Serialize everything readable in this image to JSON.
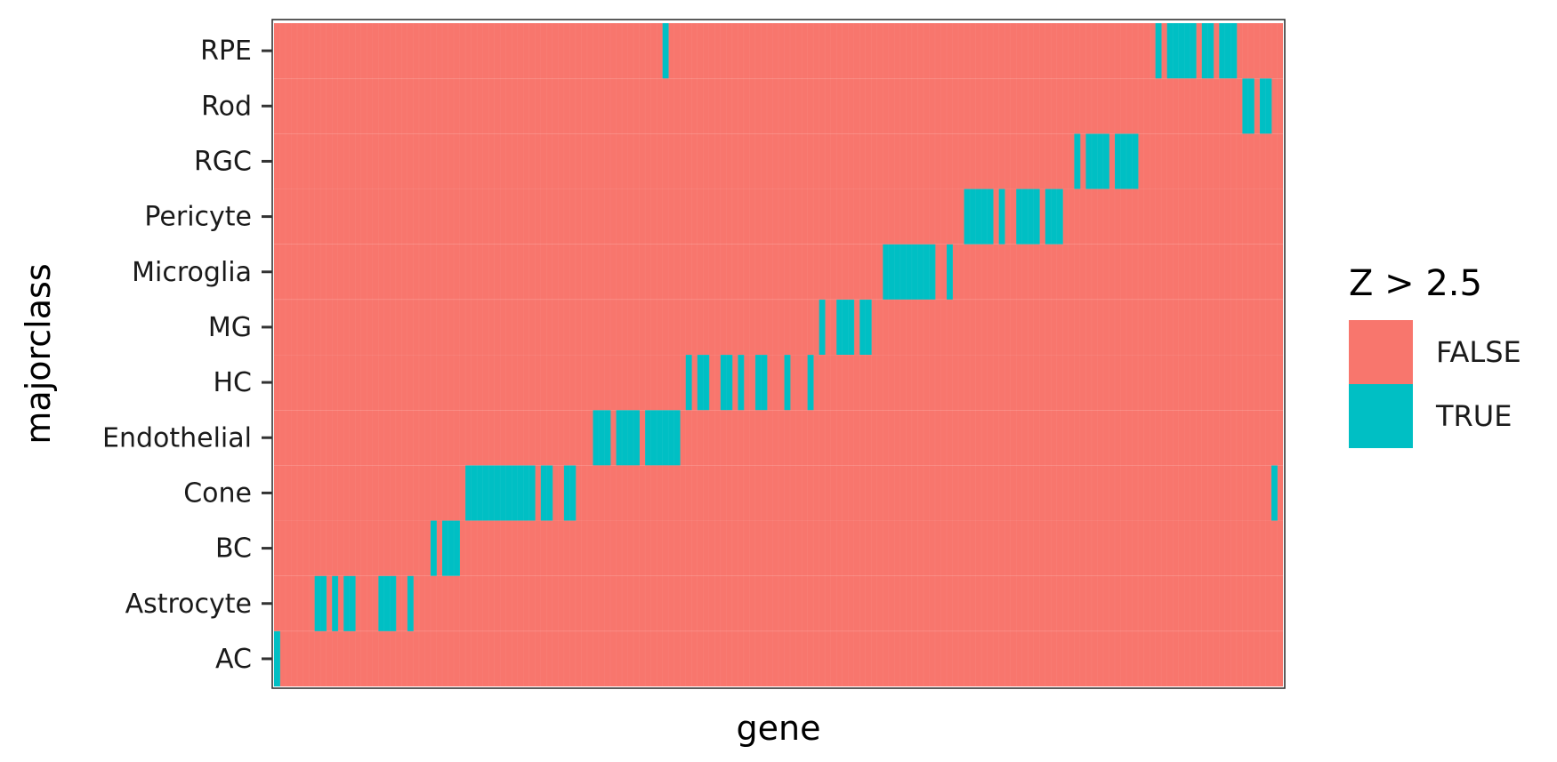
{
  "chart_data": {
    "type": "heatmap",
    "title": "",
    "xlabel": "gene",
    "ylabel": "majorclass",
    "x_tick_labels_shown": false,
    "rows": [
      "AC",
      "Astrocyte",
      "BC",
      "Cone",
      "Endothelial",
      "HC",
      "MG",
      "Microglia",
      "Pericyte",
      "RGC",
      "Rod",
      "RPE"
    ],
    "n_genes": 174,
    "true_gene_indices": {
      "AC": [
        0
      ],
      "Astrocyte": [
        7,
        8,
        10,
        12,
        13,
        18,
        19,
        20,
        23
      ],
      "BC": [
        27,
        29,
        30,
        31
      ],
      "Cone": [
        33,
        34,
        35,
        36,
        37,
        38,
        39,
        40,
        41,
        42,
        43,
        44,
        46,
        47,
        50,
        51,
        172
      ],
      "Endothelial": [
        55,
        56,
        57,
        59,
        60,
        61,
        62,
        64,
        65,
        66,
        67,
        68,
        69
      ],
      "HC": [
        71,
        73,
        74,
        77,
        78,
        80,
        83,
        84,
        88,
        92
      ],
      "MG": [
        94,
        97,
        98,
        99,
        101,
        102
      ],
      "Microglia": [
        105,
        106,
        107,
        108,
        109,
        110,
        111,
        112,
        113,
        116
      ],
      "Pericyte": [
        119,
        120,
        121,
        122,
        123,
        125,
        128,
        129,
        130,
        131,
        133,
        134,
        135
      ],
      "RGC": [
        138,
        140,
        141,
        142,
        143,
        145,
        146,
        147,
        148
      ],
      "Rod": [
        167,
        168,
        170,
        171
      ],
      "RPE": [
        67,
        152,
        154,
        155,
        156,
        157,
        158,
        160,
        161,
        163,
        164,
        165
      ]
    },
    "legend": {
      "title": "Z > 2.5",
      "placement": "right",
      "entries": [
        {
          "label": "FALSE",
          "color": "#F8766D"
        },
        {
          "label": "TRUE",
          "color": "#00BFC4"
        }
      ]
    },
    "colors": {
      "false": "#F8766D",
      "true": "#00BFC4",
      "panel_border": "#333333"
    },
    "grid": false
  }
}
